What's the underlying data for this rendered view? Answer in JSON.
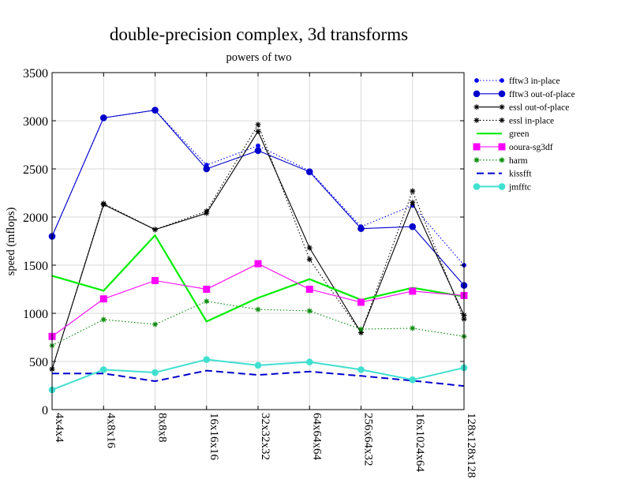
{
  "chart_data": {
    "type": "line",
    "title": "double-precision complex, 3d transforms",
    "subtitle": "powers of two",
    "ylabel": "speed (mflops)",
    "xlabel": "",
    "ylim": [
      0,
      3500
    ],
    "yticks": [
      0,
      500,
      1000,
      1500,
      2000,
      2500,
      3000,
      3500
    ],
    "grid": true,
    "legend_position": "right",
    "categories": [
      "4x4x4",
      "4x8x16",
      "8x8x8",
      "16x16x16",
      "32x32x32",
      "64x64x64",
      "256x64x32",
      "16x1024x64",
      "128x128x128"
    ],
    "series": [
      {
        "name": "fftw3 in-place",
        "color": "#0000ee",
        "dash": "dotted",
        "marker": "small-circle",
        "values": [
          1800,
          3030,
          3110,
          2540,
          2740,
          2480,
          1900,
          2120,
          1500
        ]
      },
      {
        "name": "fftw3 out-of-place",
        "color": "#0000cc",
        "dash": "solid",
        "marker": "circle",
        "values": [
          1800,
          3030,
          3110,
          2500,
          2690,
          2470,
          1880,
          1900,
          1290
        ]
      },
      {
        "name": "essl out-of-place",
        "color": "#000000",
        "dash": "solid",
        "marker": "star",
        "values": [
          420,
          2130,
          1870,
          2040,
          2890,
          1680,
          800,
          2150,
          980
        ]
      },
      {
        "name": "essl in-place",
        "color": "#000000",
        "dash": "dotted",
        "marker": "star",
        "values": [
          420,
          2140,
          1870,
          2060,
          2960,
          1560,
          800,
          2270,
          940
        ]
      },
      {
        "name": "green",
        "color": "#00ee00",
        "dash": "solid",
        "marker": "none",
        "width": 2.2,
        "values": [
          1390,
          1235,
          1810,
          915,
          1160,
          1355,
          1140,
          1265,
          1175
        ]
      },
      {
        "name": "ooura-sg3df",
        "color": "#ff00ff",
        "dash": "solid",
        "marker": "square",
        "values": [
          760,
          1150,
          1340,
          1250,
          1515,
          1250,
          1115,
          1230,
          1185
        ]
      },
      {
        "name": "harm",
        "color": "#008800",
        "dash": "dotted",
        "marker": "star",
        "values": [
          665,
          935,
          885,
          1125,
          1040,
          1025,
          835,
          845,
          760
        ]
      },
      {
        "name": "kissfft",
        "color": "#0000cc",
        "dash": "dashed",
        "marker": "none",
        "width": 2,
        "values": [
          375,
          375,
          295,
          405,
          360,
          395,
          350,
          300,
          245
        ]
      },
      {
        "name": "jmfftc",
        "color": "#40e0d0",
        "dash": "solid",
        "marker": "circle",
        "width": 2,
        "values": [
          205,
          415,
          385,
          520,
          460,
          495,
          415,
          310,
          435
        ]
      }
    ]
  }
}
